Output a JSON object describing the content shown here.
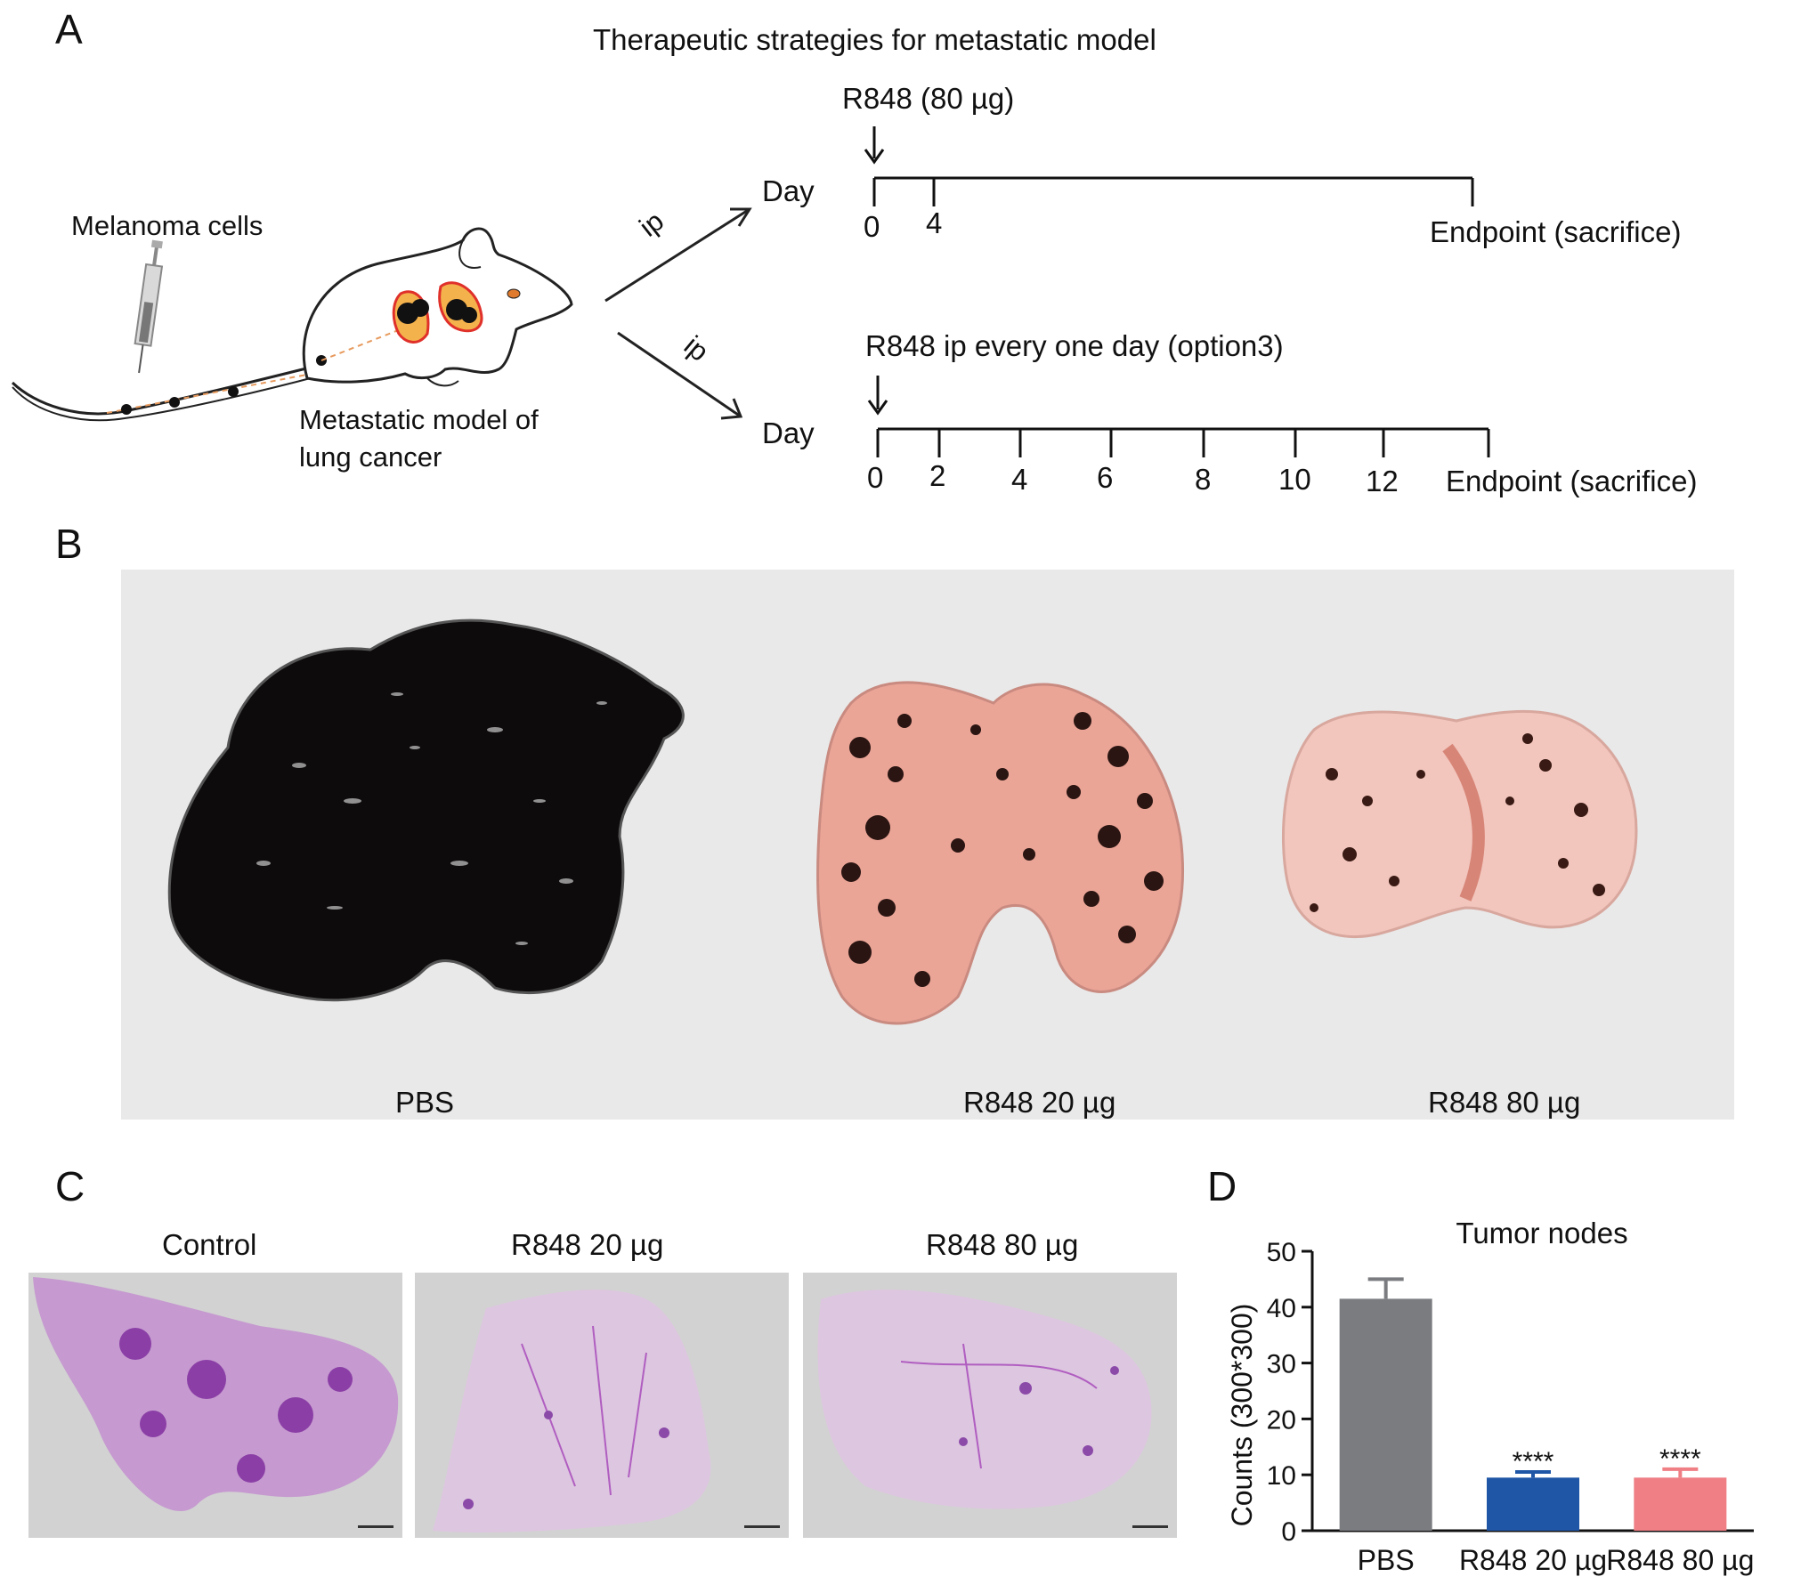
{
  "panel_a": {
    "letter": "A",
    "title": "Therapeutic strategies for metastatic model",
    "melanoma_label": "Melanoma cells",
    "model_label_line1": "Metastatic model of",
    "model_label_line2": "lung cancer",
    "route_upper": "ip",
    "route_lower": "ip",
    "timeline1": {
      "dose_label": "R848 (80 µg)",
      "day_label": "Day",
      "ticks": [
        "0",
        "4"
      ],
      "endpoint": "Endpoint (sacrifice)"
    },
    "timeline2": {
      "dose_label": "R848 ip every one day (option3)",
      "day_label": "Day",
      "ticks": [
        "0",
        "2",
        "4",
        "6",
        "8",
        "10",
        "12"
      ],
      "endpoint": "Endpoint (sacrifice)"
    }
  },
  "panel_b": {
    "letter": "B",
    "labels": [
      "PBS",
      "R848 20 µg",
      "R848 80 µg"
    ]
  },
  "panel_c": {
    "letter": "C",
    "labels": [
      "Control",
      "R848 20 µg",
      "R848 80 µg"
    ]
  },
  "panel_d": {
    "letter": "D",
    "chart_data": {
      "type": "bar",
      "title": "Tumor nodes",
      "ylabel": "Counts (300*300)",
      "xlabel": "",
      "ylim": [
        0,
        50
      ],
      "yticks": [
        0,
        10,
        20,
        30,
        40,
        50
      ],
      "categories": [
        "PBS",
        "R848 20 µg",
        "R848 80 µg"
      ],
      "values": [
        41.5,
        9.5,
        9.5
      ],
      "errors": [
        3.5,
        1.0,
        1.5
      ],
      "significance": [
        "",
        "****",
        "****"
      ],
      "colors": [
        "#7b7c80",
        "#1f56a6",
        "#ef7f84"
      ]
    }
  }
}
